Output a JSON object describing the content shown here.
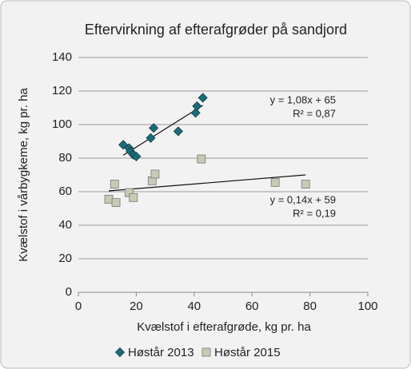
{
  "chart_data": {
    "type": "scatter",
    "title": "Eftervirkning af efterafgrøder på sandjord",
    "xlabel": "Kvælstof i efterafgrøde, kg pr. ha",
    "ylabel": "Kvælstof i vårbygkeme, kg pr. ha",
    "xlim": [
      0,
      100
    ],
    "xticks": [
      0,
      20,
      40,
      60,
      80,
      100
    ],
    "ylim": [
      0,
      140
    ],
    "yticks": [
      0,
      20,
      40,
      60,
      80,
      100,
      120,
      140
    ],
    "grid": true,
    "legend": "bottom",
    "series": [
      {
        "name": "Høstår 2013",
        "color": "#1e6b78",
        "marker": "diamond",
        "x": [
          15.5,
          17.5,
          18,
          19,
          20,
          25,
          26,
          34.5,
          40.5,
          41,
          43
        ],
        "values": [
          88,
          86,
          84,
          82,
          81,
          92,
          98,
          96,
          107,
          111,
          116
        ]
      },
      {
        "name": "Høstår 2015",
        "color": "#c9c9b5",
        "marker": "square",
        "x": [
          10.5,
          12.5,
          13,
          17.5,
          19,
          25.5,
          26.5,
          42.5,
          68,
          78.5
        ],
        "values": [
          55.5,
          64.5,
          53.5,
          59.5,
          56.5,
          66.5,
          70.5,
          79.5,
          65.5,
          64.5
        ]
      }
    ],
    "trendlines": [
      {
        "slope": 1.08,
        "intercept": 65,
        "label": "y = 1,08x + 65",
        "r2_label": "R² = 0,87"
      },
      {
        "slope": 0.14,
        "intercept": 59,
        "label": "y = 0,14x + 59",
        "r2_label": "R² = 0,19"
      }
    ]
  }
}
